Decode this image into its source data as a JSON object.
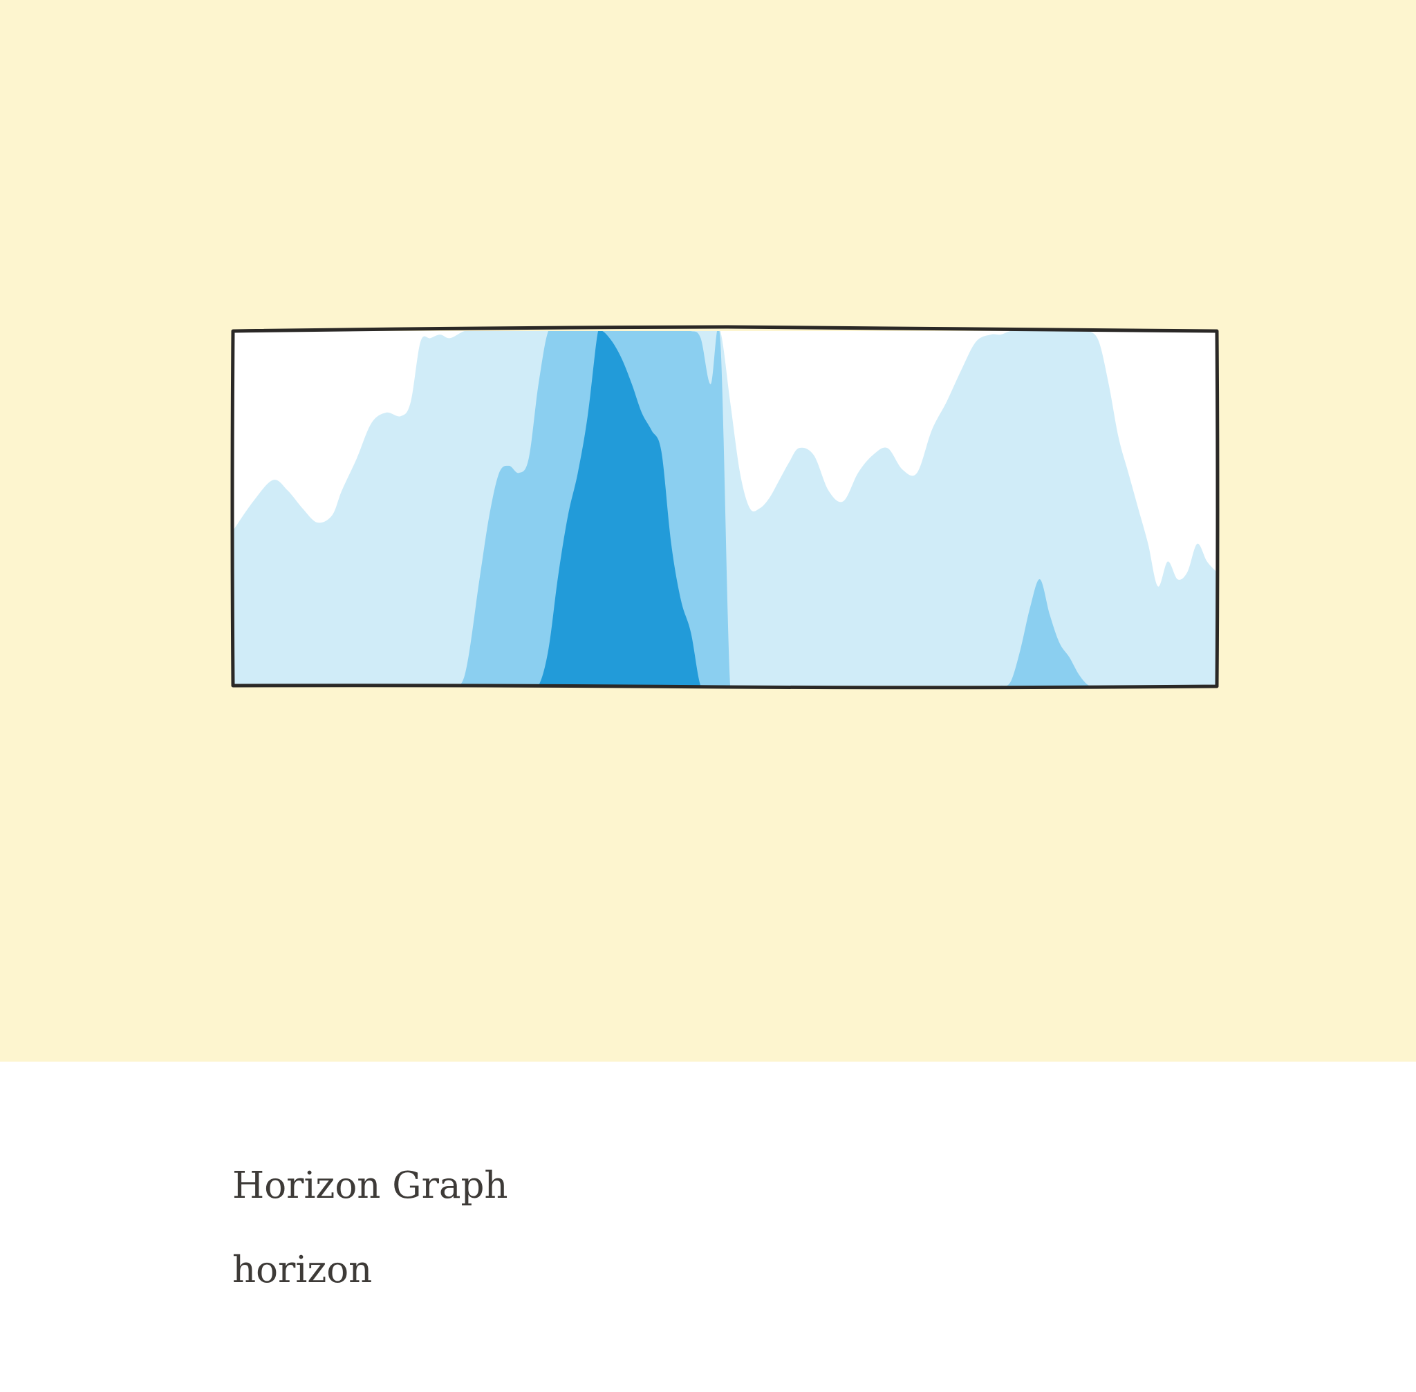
{
  "card": {
    "title": "Horizon Graph",
    "subtitle": "horizon"
  },
  "colors": {
    "hero_background": "#fdf5cf",
    "plot_background": "#ffffff",
    "band_1": "#d0ecf8",
    "band_2": "#8bcff0",
    "band_3": "#229bd9",
    "frame": "#2a2826",
    "text": "#3d3a37"
  },
  "chart_data": {
    "type": "area",
    "variant": "horizon",
    "bands": 3,
    "band_size": 1,
    "ylim": [
      0,
      3
    ],
    "x": [
      0,
      0.02,
      0.04,
      0.055,
      0.07,
      0.085,
      0.1,
      0.11,
      0.125,
      0.14,
      0.155,
      0.17,
      0.18,
      0.19,
      0.2,
      0.21,
      0.22,
      0.235,
      0.25,
      0.26,
      0.27,
      0.28,
      0.29,
      0.3,
      0.31,
      0.32,
      0.33,
      0.34,
      0.35,
      0.36,
      0.37,
      0.375,
      0.385,
      0.395,
      0.405,
      0.415,
      0.425,
      0.435,
      0.445,
      0.455,
      0.465,
      0.475,
      0.485,
      0.495,
      0.505,
      0.515,
      0.525,
      0.535,
      0.545,
      0.555,
      0.565,
      0.575,
      0.59,
      0.605,
      0.62,
      0.635,
      0.65,
      0.665,
      0.68,
      0.695,
      0.71,
      0.725,
      0.74,
      0.755,
      0.77,
      0.78,
      0.79,
      0.8,
      0.81,
      0.82,
      0.83,
      0.84,
      0.85,
      0.86,
      0.87,
      0.88,
      0.89,
      0.9,
      0.91,
      0.92,
      0.93,
      0.94,
      0.95,
      0.96,
      0.97,
      0.98,
      0.99,
      1.0
    ],
    "y": [
      0.44,
      0.52,
      0.58,
      0.55,
      0.5,
      0.46,
      0.48,
      0.55,
      0.64,
      0.74,
      0.77,
      0.76,
      0.8,
      0.97,
      0.98,
      0.99,
      0.98,
      1.03,
      1.3,
      1.48,
      1.6,
      1.62,
      1.6,
      1.64,
      1.85,
      2.1,
      2.31,
      2.48,
      2.6,
      2.76,
      2.99,
      3.0,
      2.97,
      2.92,
      2.85,
      2.77,
      2.72,
      2.66,
      2.4,
      2.24,
      2.15,
      1.98,
      1.85,
      1.97,
      0.8,
      0.6,
      0.5,
      0.5,
      0.53,
      0.58,
      0.63,
      0.67,
      0.65,
      0.55,
      0.52,
      0.6,
      0.65,
      0.67,
      0.61,
      0.6,
      0.72,
      0.8,
      0.89,
      0.97,
      0.99,
      0.99,
      1.01,
      1.1,
      1.22,
      1.3,
      1.2,
      1.12,
      1.08,
      1.03,
      1.0,
      0.97,
      0.85,
      0.7,
      0.6,
      0.5,
      0.4,
      0.28,
      0.35,
      0.3,
      0.32,
      0.4,
      0.35,
      0.32
    ]
  }
}
